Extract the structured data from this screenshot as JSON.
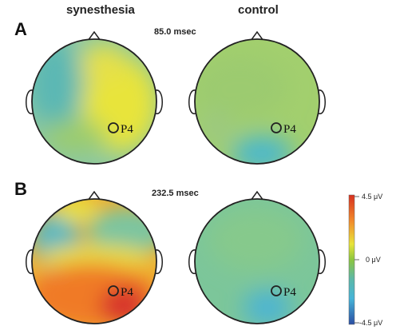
{
  "columns": {
    "left": "synesthesia",
    "right": "control"
  },
  "panels": [
    {
      "letter": "A",
      "time": "85.0 msec"
    },
    {
      "letter": "B",
      "time": "232.5 msec"
    }
  ],
  "electrode_label": "P4",
  "colorbar": {
    "max": "4.5 μV",
    "mid": "0 μV",
    "min": "-4.5 μV"
  },
  "colors": {
    "red": "#d7301f",
    "orange": "#f28a2b",
    "yellow": "#e8e43a",
    "green": "#8cc63f",
    "teal": "#5cb8a8",
    "cyan": "#46b4d8",
    "blue": "#2b4ea3"
  }
}
